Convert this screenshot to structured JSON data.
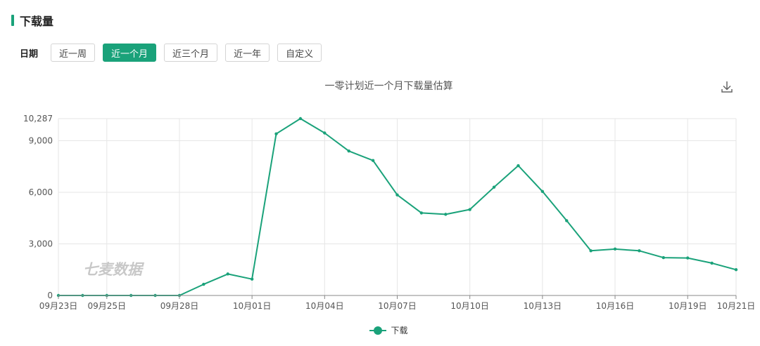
{
  "section": {
    "title": "下载量"
  },
  "filter": {
    "label": "日期",
    "options": [
      "近一周",
      "近一个月",
      "近三个月",
      "近一年",
      "自定义"
    ],
    "active_index": 1
  },
  "watermark": "七麦数据",
  "icons": {
    "download": "download-icon"
  },
  "colors": {
    "accent": "#1aa27a",
    "grid": "#e6e6e6"
  },
  "chart_data": {
    "type": "line",
    "title": "一零计划近一个月下载量估算",
    "xlabel": "",
    "ylabel": "",
    "x": [
      "09月23日",
      "09月24日",
      "09月25日",
      "09月26日",
      "09月27日",
      "09月28日",
      "09月29日",
      "09月30日",
      "10月01日",
      "10月02日",
      "10月03日",
      "10月04日",
      "10月05日",
      "10月06日",
      "10月07日",
      "10月08日",
      "10月09日",
      "10月10日",
      "10月11日",
      "10月12日",
      "10月13日",
      "10月14日",
      "10月15日",
      "10月16日",
      "10月17日",
      "10月18日",
      "10月19日",
      "10月20日",
      "10月21日"
    ],
    "x_tick_labels": [
      "09月23日",
      "09月25日",
      "09月28日",
      "10月01日",
      "10月04日",
      "10月07日",
      "10月10日",
      "10月13日",
      "10月16日",
      "10月19日",
      "10月21日"
    ],
    "y_tick_labels": [
      "0",
      "3,000",
      "6,000",
      "9,000",
      "10,287"
    ],
    "y_ticks": [
      0,
      3000,
      6000,
      9000,
      10287
    ],
    "ylim": [
      0,
      10287
    ],
    "grid": true,
    "legend_position": "bottom",
    "series": [
      {
        "name": "下载",
        "color": "#1aa27a",
        "values": [
          0,
          0,
          0,
          0,
          0,
          0,
          650,
          1250,
          950,
          9400,
          10287,
          9450,
          8400,
          7850,
          5850,
          4800,
          4720,
          5000,
          6300,
          7550,
          6050,
          4350,
          2600,
          2700,
          2600,
          2200,
          2180,
          1880,
          1500
        ]
      }
    ]
  }
}
